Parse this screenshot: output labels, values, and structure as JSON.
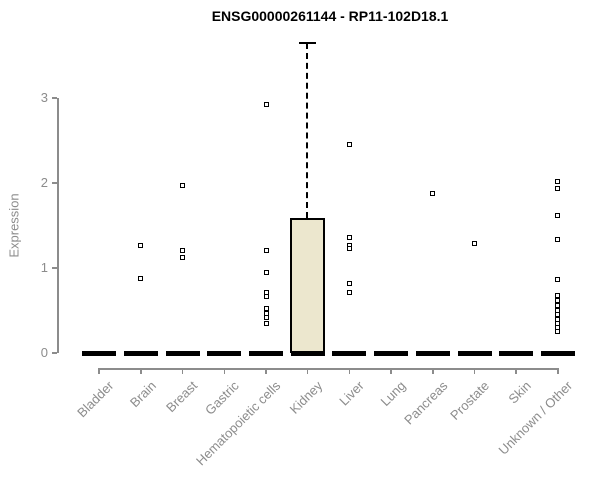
{
  "chart_data": {
    "type": "boxplot",
    "title": "ENSG00000261144 - RP11-102D18.1",
    "ylabel": "Expression",
    "xlabel": "",
    "yticks": [
      0,
      1,
      2,
      3
    ],
    "ylim": [
      0,
      3.75
    ],
    "grid": false,
    "legend": false,
    "categories": [
      "Bladder",
      "Brain",
      "Breast",
      "Gastric",
      "Hematopoietic cells",
      "Kidney",
      "Liver",
      "Lung",
      "Pancreas",
      "Prostate",
      "Skin",
      "Unknown / Other"
    ],
    "boxes": [
      {
        "category": "Bladder",
        "median": 0,
        "q1": 0,
        "q3": 0,
        "whisker_low": 0,
        "whisker_high": 0,
        "outliers": []
      },
      {
        "category": "Brain",
        "median": 0,
        "q1": 0,
        "q3": 0,
        "whisker_low": 0,
        "whisker_high": 0,
        "outliers": [
          1.27,
          0.88
        ]
      },
      {
        "category": "Breast",
        "median": 0,
        "q1": 0,
        "q3": 0,
        "whisker_low": 0,
        "whisker_high": 0,
        "outliers": [
          1.97,
          1.21,
          1.12
        ]
      },
      {
        "category": "Gastric",
        "median": 0,
        "q1": 0,
        "q3": 0,
        "whisker_low": 0,
        "whisker_high": 0,
        "outliers": []
      },
      {
        "category": "Hematopoietic cells",
        "median": 0,
        "q1": 0,
        "q3": 0,
        "whisker_low": 0,
        "whisker_high": 0,
        "outliers": [
          2.92,
          1.21,
          0.95,
          0.71,
          0.66,
          0.52,
          0.47,
          0.42,
          0.35
        ]
      },
      {
        "category": "Kidney",
        "median": 0,
        "q1": 0,
        "q3": 1.59,
        "whisker_low": 0,
        "whisker_high": 3.65,
        "outliers": []
      },
      {
        "category": "Liver",
        "median": 0,
        "q1": 0,
        "q3": 0,
        "whisker_low": 0,
        "whisker_high": 0,
        "outliers": [
          2.45,
          1.36,
          1.27,
          1.23,
          0.82,
          0.71
        ]
      },
      {
        "category": "Lung",
        "median": 0,
        "q1": 0,
        "q3": 0,
        "whisker_low": 0,
        "whisker_high": 0,
        "outliers": []
      },
      {
        "category": "Pancreas",
        "median": 0,
        "q1": 0,
        "q3": 0,
        "whisker_low": 0,
        "whisker_high": 0,
        "outliers": [
          1.88
        ]
      },
      {
        "category": "Prostate",
        "median": 0,
        "q1": 0,
        "q3": 0,
        "whisker_low": 0,
        "whisker_high": 0,
        "outliers": [
          1.29
        ]
      },
      {
        "category": "Skin",
        "median": 0,
        "q1": 0,
        "q3": 0,
        "whisker_low": 0,
        "whisker_high": 0,
        "outliers": []
      },
      {
        "category": "Unknown / Other",
        "median": 0,
        "q1": 0,
        "q3": 0,
        "whisker_low": 0,
        "whisker_high": 0,
        "outliers": [
          2.02,
          1.94,
          1.62,
          1.34,
          0.86,
          0.68,
          0.62,
          0.56,
          0.5,
          0.45,
          0.4,
          0.35,
          0.3,
          0.25
        ]
      }
    ],
    "colors": {
      "box_fill": "#ece7ce",
      "box_border": "#000000",
      "median": "#000000",
      "outlier_border": "#000000",
      "axis": "#8c8c8c",
      "tick_label": "#8c8c8c",
      "title": "#000000"
    }
  }
}
